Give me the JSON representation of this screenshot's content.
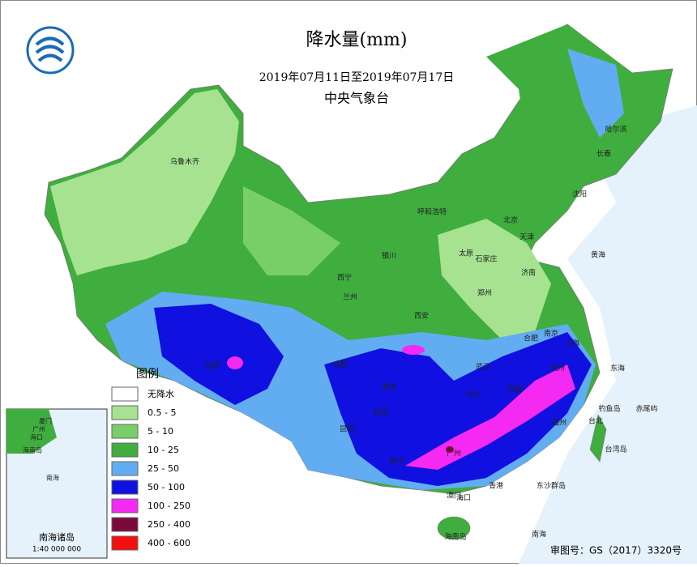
{
  "header": {
    "title": "降水量(mm)",
    "period": "2019年07月11日至2019年07月17日",
    "agency": "中央气象台"
  },
  "legend": {
    "title": "图例",
    "items": [
      {
        "label": "无降水",
        "color": "#ffffff"
      },
      {
        "label": "0.5 - 5",
        "color": "#a6e28f"
      },
      {
        "label": "5 - 10",
        "color": "#78cf6a"
      },
      {
        "label": "10 - 25",
        "color": "#3fae3f"
      },
      {
        "label": "25 - 50",
        "color": "#62adf2"
      },
      {
        "label": "50 - 100",
        "color": "#1010e0"
      },
      {
        "label": "100 - 250",
        "color": "#f52af2"
      },
      {
        "label": "250 - 400",
        "color": "#7a0a3a"
      },
      {
        "label": "400 - 600",
        "color": "#f51010"
      }
    ]
  },
  "inset": {
    "title": "南海诸岛",
    "scale": "1:40 000 000",
    "labels": [
      "南海",
      "厦门",
      "广州",
      "海口",
      "海南岛"
    ]
  },
  "places": [
    "乌鲁木齐",
    "西宁",
    "兰州",
    "银川",
    "呼和浩特",
    "北京",
    "天津",
    "石家庄",
    "太原",
    "济南",
    "郑州",
    "西安",
    "合肥",
    "上海",
    "南京",
    "杭州",
    "武汉",
    "长沙",
    "南昌",
    "福州",
    "台北",
    "广州",
    "香港",
    "澳门",
    "海口",
    "南宁",
    "贵阳",
    "昆明",
    "成都",
    "重庆",
    "拉萨",
    "长春",
    "哈尔滨",
    "沈阳",
    "黄海",
    "东海",
    "南海",
    "钓鱼岛",
    "赤尾屿",
    "台湾岛",
    "东沙群岛",
    "海南岛"
  ],
  "footer": "审图号：GS（2017）3320号"
}
